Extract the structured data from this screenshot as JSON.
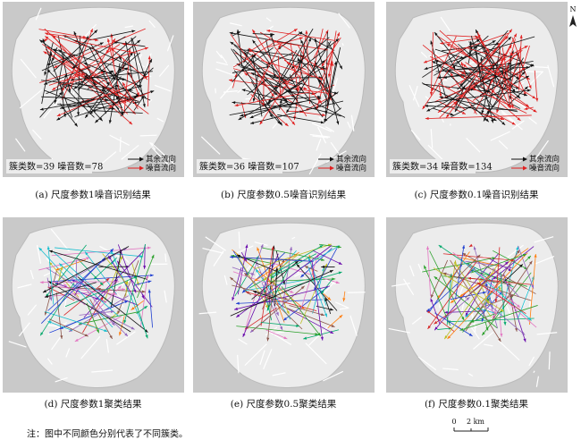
{
  "panels": [
    {
      "caption": "(a) 尺度参数1噪音识别结果",
      "stats": "簇类数=39  噪音数=78",
      "legend": [
        "其余流向",
        "噪音流向"
      ]
    },
    {
      "caption": "(b) 尺度参数0.5噪音识别结果",
      "stats": "簇类数=36  噪音数=107",
      "legend": [
        "其余流向",
        "噪音流向"
      ]
    },
    {
      "caption": "(c) 尺度参数0.1噪音识别结果",
      "stats": "簇类数=34  噪音数=134",
      "legend": [
        "其余流向",
        "噪音流向"
      ]
    },
    {
      "caption": "(d) 尺度参数1聚类结果"
    },
    {
      "caption": "(e) 尺度参数0.5聚类结果"
    },
    {
      "caption": "(f) 尺度参数0.1聚类结果"
    }
  ],
  "note": "注：图中不同颜色分别代表了不同簇类。",
  "north": "N",
  "scale": {
    "start": "0",
    "end": "2 km"
  }
}
